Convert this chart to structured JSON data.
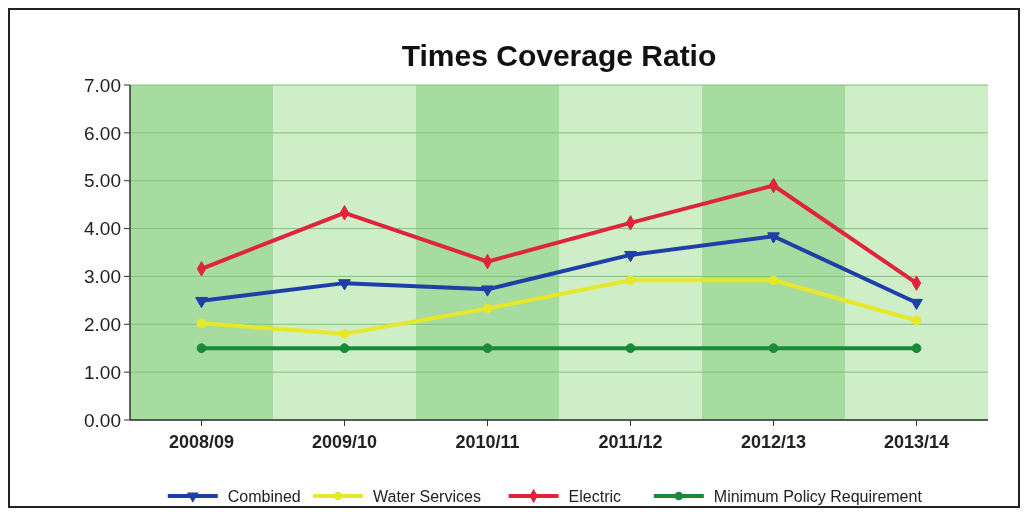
{
  "chart_data": {
    "type": "line",
    "title": "Times Coverage Ratio",
    "categories": [
      "2008/09",
      "2009/10",
      "2010/11",
      "2011/12",
      "2012/13",
      "2013/14"
    ],
    "series": [
      {
        "name": "Combined",
        "color": "#1f3fa8",
        "marker": "triangle",
        "values": [
          2.49,
          2.86,
          2.73,
          3.45,
          3.84,
          2.45
        ]
      },
      {
        "name": "Water Services",
        "color": "#e8e82a",
        "marker": "circle",
        "values": [
          2.02,
          1.8,
          2.33,
          2.92,
          2.92,
          2.08
        ]
      },
      {
        "name": "Electric",
        "color": "#e0243c",
        "marker": "diamond",
        "values": [
          3.16,
          4.33,
          3.31,
          4.12,
          4.9,
          2.86
        ]
      },
      {
        "name": "Minimum Policy Requirement",
        "color": "#1a8a3a",
        "marker": "circle",
        "values": [
          1.5,
          1.5,
          1.5,
          1.5,
          1.5,
          1.5
        ]
      }
    ],
    "ylim": [
      0,
      7
    ],
    "yticks": [
      {
        "value": 0,
        "label": "0.00"
      },
      {
        "value": 1,
        "label": "1.00"
      },
      {
        "value": 2,
        "label": "2.00"
      },
      {
        "value": 3,
        "label": "3.00"
      },
      {
        "value": 4,
        "label": "4.00"
      },
      {
        "value": 5,
        "label": "5.00"
      },
      {
        "value": 6,
        "label": "6.00"
      },
      {
        "value": 7,
        "label": "7.00"
      }
    ],
    "grid": "y",
    "legend": "bottom",
    "line_style": "solid"
  }
}
